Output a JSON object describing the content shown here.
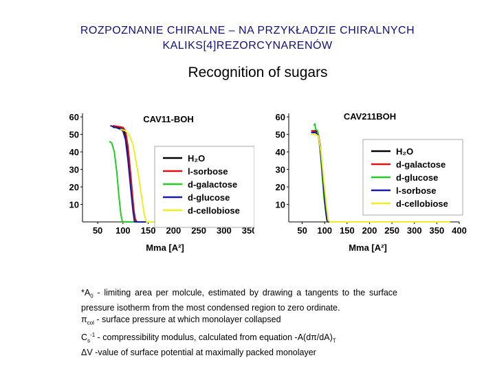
{
  "header": {
    "title_line1": "ROZPOZNANIE CHIRALNE – NA PRZYKŁADZIE CHIRALNYCH",
    "title_line2": "KALIKS[4]REZORCYNARENÓW",
    "subtitle": "Recognition of sugars",
    "title_color": "#10107a"
  },
  "chart_data": [
    {
      "type": "line",
      "title": "CAV11-BOH",
      "xlabel": "Mma [A²]",
      "ylabel": "",
      "x_ticks": [
        "50",
        "100",
        "150",
        "200",
        "250",
        "300",
        "350"
      ],
      "y_ticks": [
        "10",
        "20",
        "30",
        "40",
        "50",
        "60"
      ],
      "xlim": [
        20,
        360
      ],
      "ylim": [
        0,
        62
      ],
      "legend_position": "center-right",
      "series": [
        {
          "name": "H₂O",
          "color": "#000000",
          "points": [
            [
              80,
              54
            ],
            [
              90,
              54
            ],
            [
              100,
              53
            ],
            [
              105,
              50
            ],
            [
              110,
              40
            ],
            [
              115,
              25
            ],
            [
              120,
              10
            ],
            [
              124,
              2
            ],
            [
              127,
              0
            ],
            [
              300,
              0
            ]
          ]
        },
        {
          "name": "l-sorbose",
          "color": "#dd1111",
          "points": [
            [
              80,
              55
            ],
            [
              90,
              54.5
            ],
            [
              100,
              54
            ],
            [
              105,
              52
            ],
            [
              110,
              43
            ],
            [
              115,
              28
            ],
            [
              120,
              12
            ],
            [
              123,
              3
            ],
            [
              126,
              0
            ],
            [
              300,
              0
            ]
          ]
        },
        {
          "name": "d-galactose",
          "color": "#22cc22",
          "points": [
            [
              73,
              46
            ],
            [
              78,
              45
            ],
            [
              83,
              40
            ],
            [
              88,
              28
            ],
            [
              92,
              15
            ],
            [
              96,
              4
            ],
            [
              99,
              0
            ],
            [
              300,
              0
            ]
          ]
        },
        {
          "name": "d-glucose",
          "color": "#1a1aa0",
          "points": [
            [
              75,
              55
            ],
            [
              85,
              54
            ],
            [
              95,
              53
            ],
            [
              100,
              52
            ],
            [
              105,
              47
            ],
            [
              110,
              35
            ],
            [
              115,
              20
            ],
            [
              120,
              6
            ],
            [
              123,
              0
            ],
            [
              300,
              0
            ]
          ]
        },
        {
          "name": "d-cellobiose",
          "color": "#eeee22",
          "points": [
            [
              95,
              53
            ],
            [
              105,
              52
            ],
            [
              112,
              50
            ],
            [
              120,
              44
            ],
            [
              130,
              28
            ],
            [
              138,
              12
            ],
            [
              143,
              3
            ],
            [
              147,
              0
            ],
            [
              300,
              0
            ]
          ]
        }
      ]
    },
    {
      "type": "line",
      "title": "CAV211BOH",
      "xlabel": "Mma [A²]",
      "ylabel": "",
      "x_ticks": [
        "50",
        "100",
        "150",
        "200",
        "250",
        "300",
        "350",
        "400"
      ],
      "y_ticks": [
        "10",
        "20",
        "30",
        "40",
        "50",
        "60"
      ],
      "xlim": [
        20,
        400
      ],
      "ylim": [
        0,
        62
      ],
      "legend_position": "center-right",
      "series": [
        {
          "name": "H₂O",
          "color": "#000000",
          "points": [
            [
              70,
              52
            ],
            [
              80,
              52
            ],
            [
              85,
              51
            ],
            [
              90,
              44
            ],
            [
              95,
              30
            ],
            [
              100,
              14
            ],
            [
              105,
              3
            ],
            [
              108,
              0
            ],
            [
              380,
              0
            ]
          ]
        },
        {
          "name": "d-galactose",
          "color": "#dd1111",
          "points": [
            [
              70,
              52
            ],
            [
              80,
              51.5
            ],
            [
              86,
              50
            ],
            [
              91,
              42
            ],
            [
              96,
              27
            ],
            [
              101,
              11
            ],
            [
              106,
              1
            ],
            [
              108,
              0
            ],
            [
              380,
              0
            ]
          ]
        },
        {
          "name": "d-glucose",
          "color": "#22cc22",
          "points": [
            [
              76,
              55
            ],
            [
              78,
              56
            ],
            [
              80,
              53
            ],
            [
              84,
              52
            ],
            [
              88,
              46
            ],
            [
              93,
              32
            ],
            [
              98,
              15
            ],
            [
              103,
              4
            ],
            [
              106,
              0
            ],
            [
              380,
              0
            ]
          ]
        },
        {
          "name": "l-sorbose",
          "color": "#1a1aa0",
          "points": [
            [
              70,
              51
            ],
            [
              80,
              51
            ],
            [
              86,
              49
            ],
            [
              91,
              40
            ],
            [
              96,
              25
            ],
            [
              101,
              10
            ],
            [
              105,
              1
            ],
            [
              108,
              0
            ],
            [
              380,
              0
            ]
          ]
        },
        {
          "name": "d-cellobiose",
          "color": "#eeee22",
          "points": [
            [
              70,
              50
            ],
            [
              80,
              50
            ],
            [
              86,
              49
            ],
            [
              92,
              40
            ],
            [
              98,
              24
            ],
            [
              104,
              9
            ],
            [
              108,
              1
            ],
            [
              112,
              0
            ],
            [
              380,
              0
            ]
          ]
        }
      ]
    }
  ],
  "notes": {
    "line1_main": "*A",
    "line1_sub": "0",
    "line1_rest": " - limiting area per molcule, estimated by drawing a tangents to the surface pressure isotherm from the most condensed region to zero ordinate.",
    "line2_main": "π",
    "line2_sub": "col",
    "line2_rest": " - surface pressure at which monolayer collapsed",
    "line3_main": "C",
    "line3_sub": "s",
    "line3_sup": "-1",
    "line3_rest": " - compressibility modulus, calculated from equation -A(dπ/dA)",
    "line3_tail_sub": "T",
    "line4": "ΔV -value of surface potential at maximally packed monolayer"
  }
}
